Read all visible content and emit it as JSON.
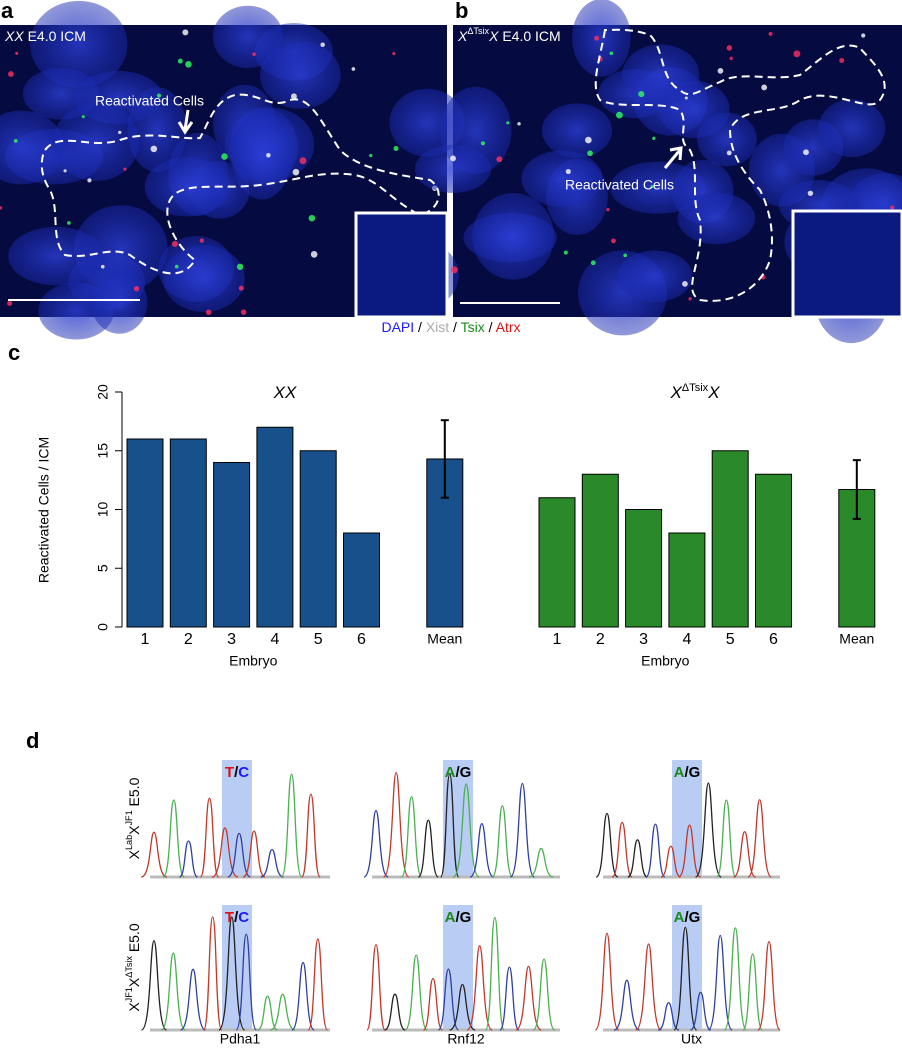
{
  "panel_letters": [
    "a",
    "b",
    "c",
    "d"
  ],
  "images": [
    {
      "caption": [
        {
          "text": "XX",
          "style": "italic"
        },
        {
          "text": " E4.0 ICM"
        }
      ],
      "annotation": "Reactivated Cells"
    },
    {
      "caption": [
        {
          "text": "X",
          "style": "italic"
        },
        {
          "text": "ΔTsix",
          "style": "sup"
        },
        {
          "text": "X",
          "style": "italic"
        },
        {
          "text": " E4.0 ICM"
        }
      ],
      "annotation": "Reactivated Cells"
    }
  ],
  "stain_legend": [
    {
      "text": "DAPI",
      "color": "#1a1aff"
    },
    {
      "text": " / "
    },
    {
      "text": "Xist",
      "color": "#aaaaaa"
    },
    {
      "text": " / "
    },
    {
      "text": "Tsix",
      "color": "#1a8a1a"
    },
    {
      "text": " / "
    },
    {
      "text": "Atrx",
      "color": "#e01010"
    }
  ],
  "chart_data": [
    {
      "type": "bar",
      "title": [
        {
          "text": "XX",
          "style": "italic"
        }
      ],
      "y_label": "Reactivated Cells / ICM",
      "x_label": "Embryo",
      "categories": [
        "1",
        "2",
        "3",
        "4",
        "5",
        "6",
        "Mean"
      ],
      "values": [
        16,
        16,
        14,
        17,
        15,
        8,
        14.3
      ],
      "errors": [
        null,
        null,
        null,
        null,
        null,
        null,
        3.3
      ],
      "color": "#17508a",
      "ylim": [
        0,
        20
      ],
      "yticks": [
        0,
        5,
        10,
        15,
        20
      ]
    },
    {
      "type": "bar",
      "title": [
        {
          "text": "X",
          "style": "italic"
        },
        {
          "text": "ΔTsix",
          "style": "sup"
        },
        {
          "text": "X",
          "style": "italic"
        }
      ],
      "x_label": "Embryo",
      "categories": [
        "1",
        "2",
        "3",
        "4",
        "5",
        "6",
        "Mean"
      ],
      "values": [
        11,
        13,
        10,
        8,
        15,
        13,
        11.7
      ],
      "errors": [
        null,
        null,
        null,
        null,
        null,
        null,
        2.5
      ],
      "color": "#2a8a2a",
      "ylim": [
        0,
        20
      ]
    }
  ],
  "chromatograms": {
    "genes": [
      "Pdha1",
      "Rnf12",
      "Utx"
    ],
    "rows": [
      {
        "label": [
          {
            "text": "X"
          },
          {
            "text": "Lab",
            "style": "sup"
          },
          {
            "text": "X"
          },
          {
            "text": "JF1",
            "style": "sup"
          },
          {
            "text": " E5.0"
          }
        ],
        "calls": [
          [
            {
              "text": "T",
              "color": "#e01010"
            },
            {
              "text": "/"
            },
            {
              "text": "C",
              "color": "#1a1aff"
            }
          ],
          [
            {
              "text": "A",
              "color": "#1a8a1a"
            },
            {
              "text": "/"
            },
            {
              "text": "G",
              "color": "#000000"
            }
          ],
          [
            {
              "text": "A",
              "color": "#1a8a1a"
            },
            {
              "text": "/"
            },
            {
              "text": "G",
              "color": "#000000"
            }
          ]
        ]
      },
      {
        "label": [
          {
            "text": "X"
          },
          {
            "text": "JF1",
            "style": "sup"
          },
          {
            "text": "X"
          },
          {
            "text": "ΔTsix",
            "style": "sup"
          },
          {
            "text": " E5.0"
          }
        ],
        "calls": [
          [
            {
              "text": "T",
              "color": "#e01010"
            },
            {
              "text": "/"
            },
            {
              "text": "C",
              "color": "#1a1aff"
            }
          ],
          [
            {
              "text": "A",
              "color": "#1a8a1a"
            },
            {
              "text": "/"
            },
            {
              "text": "G",
              "color": "#000000"
            }
          ],
          [
            {
              "text": "A",
              "color": "#1a8a1a"
            },
            {
              "text": "/"
            },
            {
              "text": "G",
              "color": "#000000"
            }
          ]
        ]
      }
    ]
  }
}
